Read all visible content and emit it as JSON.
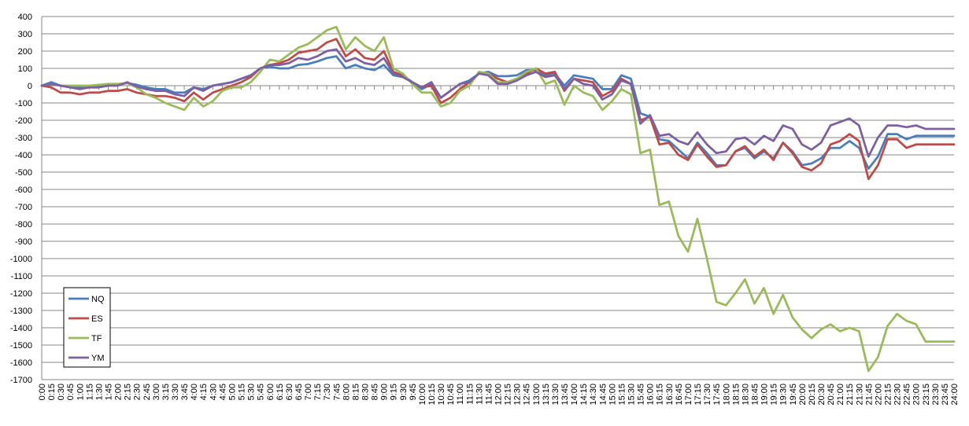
{
  "chart_data": {
    "type": "line",
    "title": "",
    "xlabel": "",
    "ylabel": "",
    "ylim": [
      -1700,
      400
    ],
    "ytick_step": 100,
    "grid": "horizontal",
    "legend_position": "bottom-left",
    "x": [
      "0:00",
      "0:15",
      "0:30",
      "0:45",
      "1:00",
      "1:15",
      "1:30",
      "1:45",
      "2:00",
      "2:15",
      "2:30",
      "2:45",
      "3:00",
      "3:15",
      "3:30",
      "3:45",
      "4:00",
      "4:15",
      "4:30",
      "4:45",
      "5:00",
      "5:15",
      "5:30",
      "5:45",
      "6:00",
      "6:15",
      "6:30",
      "6:45",
      "7:00",
      "7:15",
      "7:30",
      "7:45",
      "8:00",
      "8:15",
      "8:30",
      "8:45",
      "9:00",
      "9:15",
      "9:30",
      "9:45",
      "10:00",
      "10:15",
      "10:30",
      "10:45",
      "11:00",
      "11:15",
      "11:30",
      "11:45",
      "12:00",
      "12:15",
      "12:30",
      "12:45",
      "13:00",
      "13:15",
      "13:30",
      "13:45",
      "14:00",
      "14:15",
      "14:30",
      "14:45",
      "15:00",
      "15:15",
      "15:30",
      "15:45",
      "16:00",
      "16:15",
      "16:30",
      "16:45",
      "17:00",
      "17:15",
      "17:30",
      "17:45",
      "18:00",
      "18:15",
      "18:30",
      "18:45",
      "19:00",
      "19:15",
      "19:30",
      "19:45",
      "20:00",
      "20:15",
      "20:30",
      "20:45",
      "21:00",
      "21:15",
      "21:30",
      "21:45",
      "22:00",
      "22:15",
      "22:30",
      "22:45",
      "23:00",
      "23:15",
      "23:30",
      "23:45",
      "24:00"
    ],
    "series": [
      {
        "name": "NQ",
        "color": "#4a7ebb",
        "values": [
          0,
          20,
          0,
          -10,
          -10,
          -5,
          -5,
          5,
          5,
          15,
          5,
          -10,
          -20,
          -20,
          -40,
          -40,
          -10,
          -20,
          0,
          10,
          20,
          40,
          60,
          100,
          110,
          100,
          100,
          120,
          125,
          140,
          160,
          170,
          100,
          120,
          100,
          90,
          120,
          60,
          50,
          20,
          -20,
          10,
          -70,
          -30,
          10,
          30,
          70,
          80,
          55,
          55,
          60,
          90,
          90,
          60,
          70,
          0,
          60,
          50,
          40,
          -20,
          -20,
          60,
          40,
          -160,
          -180,
          -310,
          -320,
          -370,
          -420,
          -330,
          -390,
          -460,
          -460,
          -380,
          -360,
          -420,
          -380,
          -420,
          -330,
          -380,
          -460,
          -450,
          -420,
          -360,
          -360,
          -320,
          -360,
          -480,
          -410,
          -280,
          -280,
          -310,
          -290,
          -290,
          -290,
          -290,
          -290
        ]
      },
      {
        "name": "ES",
        "color": "#be4b48",
        "values": [
          0,
          -10,
          -40,
          -40,
          -50,
          -40,
          -40,
          -30,
          -30,
          -20,
          -40,
          -50,
          -60,
          -60,
          -70,
          -90,
          -40,
          -80,
          -40,
          -20,
          0,
          20,
          50,
          100,
          120,
          130,
          150,
          190,
          200,
          210,
          250,
          270,
          170,
          210,
          160,
          150,
          200,
          80,
          60,
          20,
          -10,
          0,
          -100,
          -70,
          -20,
          20,
          70,
          70,
          40,
          20,
          40,
          70,
          100,
          70,
          80,
          -30,
          40,
          30,
          20,
          -60,
          -30,
          40,
          10,
          -200,
          -180,
          -340,
          -330,
          -400,
          -430,
          -340,
          -410,
          -470,
          -460,
          -380,
          -350,
          -410,
          -370,
          -430,
          -330,
          -390,
          -470,
          -490,
          -450,
          -340,
          -320,
          -280,
          -320,
          -540,
          -460,
          -310,
          -310,
          -360,
          -340,
          -340,
          -340,
          -340,
          -340
        ]
      },
      {
        "name": "TF",
        "color": "#9bbb59",
        "values": [
          0,
          10,
          0,
          0,
          0,
          0,
          5,
          10,
          10,
          15,
          -10,
          -50,
          -70,
          -100,
          -120,
          -140,
          -70,
          -120,
          -90,
          -30,
          -10,
          -10,
          20,
          80,
          150,
          140,
          180,
          220,
          240,
          280,
          320,
          340,
          210,
          280,
          230,
          200,
          280,
          100,
          70,
          10,
          -40,
          -40,
          -120,
          -100,
          -30,
          0,
          80,
          70,
          20,
          20,
          40,
          80,
          100,
          10,
          30,
          -110,
          0,
          -40,
          -60,
          -140,
          -90,
          -20,
          -50,
          -390,
          -370,
          -690,
          -670,
          -870,
          -960,
          -770,
          -1000,
          -1250,
          -1270,
          -1200,
          -1120,
          -1260,
          -1170,
          -1320,
          -1210,
          -1340,
          -1410,
          -1460,
          -1410,
          -1380,
          -1420,
          -1400,
          -1420,
          -1650,
          -1570,
          -1390,
          -1320,
          -1360,
          -1380,
          -1480,
          -1480,
          -1480,
          -1480
        ]
      },
      {
        "name": "YM",
        "color": "#7d60a0",
        "values": [
          0,
          10,
          0,
          -10,
          -20,
          -10,
          -10,
          0,
          0,
          20,
          -5,
          -20,
          -30,
          -30,
          -50,
          -60,
          -10,
          -30,
          0,
          10,
          20,
          40,
          60,
          100,
          120,
          120,
          130,
          160,
          150,
          170,
          200,
          210,
          140,
          160,
          130,
          120,
          160,
          70,
          50,
          20,
          -10,
          20,
          -70,
          -30,
          10,
          20,
          70,
          60,
          10,
          10,
          30,
          60,
          80,
          50,
          60,
          -20,
          40,
          10,
          0,
          -80,
          -50,
          30,
          10,
          -220,
          -170,
          -290,
          -280,
          -320,
          -340,
          -270,
          -340,
          -390,
          -380,
          -310,
          -300,
          -340,
          -290,
          -320,
          -230,
          -250,
          -340,
          -370,
          -330,
          -230,
          -210,
          -190,
          -230,
          -410,
          -300,
          -230,
          -230,
          -240,
          -230,
          -250,
          -250,
          -250,
          -250
        ]
      }
    ]
  }
}
